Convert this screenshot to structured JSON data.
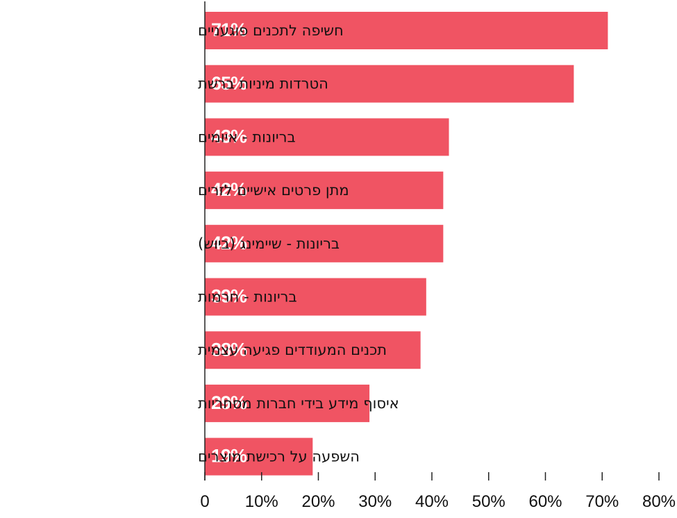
{
  "chart_data": {
    "type": "bar",
    "orientation": "horizontal",
    "categories": [
      "חשיפה לתכנים פוגעניים",
      "הטרדות מיניות ברשת",
      "בריונות - איומים",
      "מתן פרטים אישיים לזרים",
      "בריונות - שיימינג (ביוש)",
      "בריונות - חרמות",
      "תכנים המעודדים פגיעה עצמית",
      "איסוף מידע בידי חברות מסחריות",
      "השפעה על רכישת מוצרים"
    ],
    "values": [
      71,
      65,
      43,
      42,
      42,
      39,
      38,
      29,
      19
    ],
    "data_labels": [
      "71%",
      "65%",
      "43%",
      "42%",
      "42%",
      "39%",
      "38%",
      "29%",
      "19%"
    ],
    "xlim": [
      0,
      80
    ],
    "x_ticks": [
      0,
      10,
      20,
      30,
      40,
      50,
      60,
      70,
      80
    ],
    "x_tick_labels": [
      "0",
      "10%",
      "20%",
      "30%",
      "40%",
      "50%",
      "60%",
      "70%",
      "80%"
    ],
    "bar_color": "#f05463",
    "grid": false,
    "legend": "none",
    "title": "",
    "xlabel": "",
    "ylabel": ""
  }
}
